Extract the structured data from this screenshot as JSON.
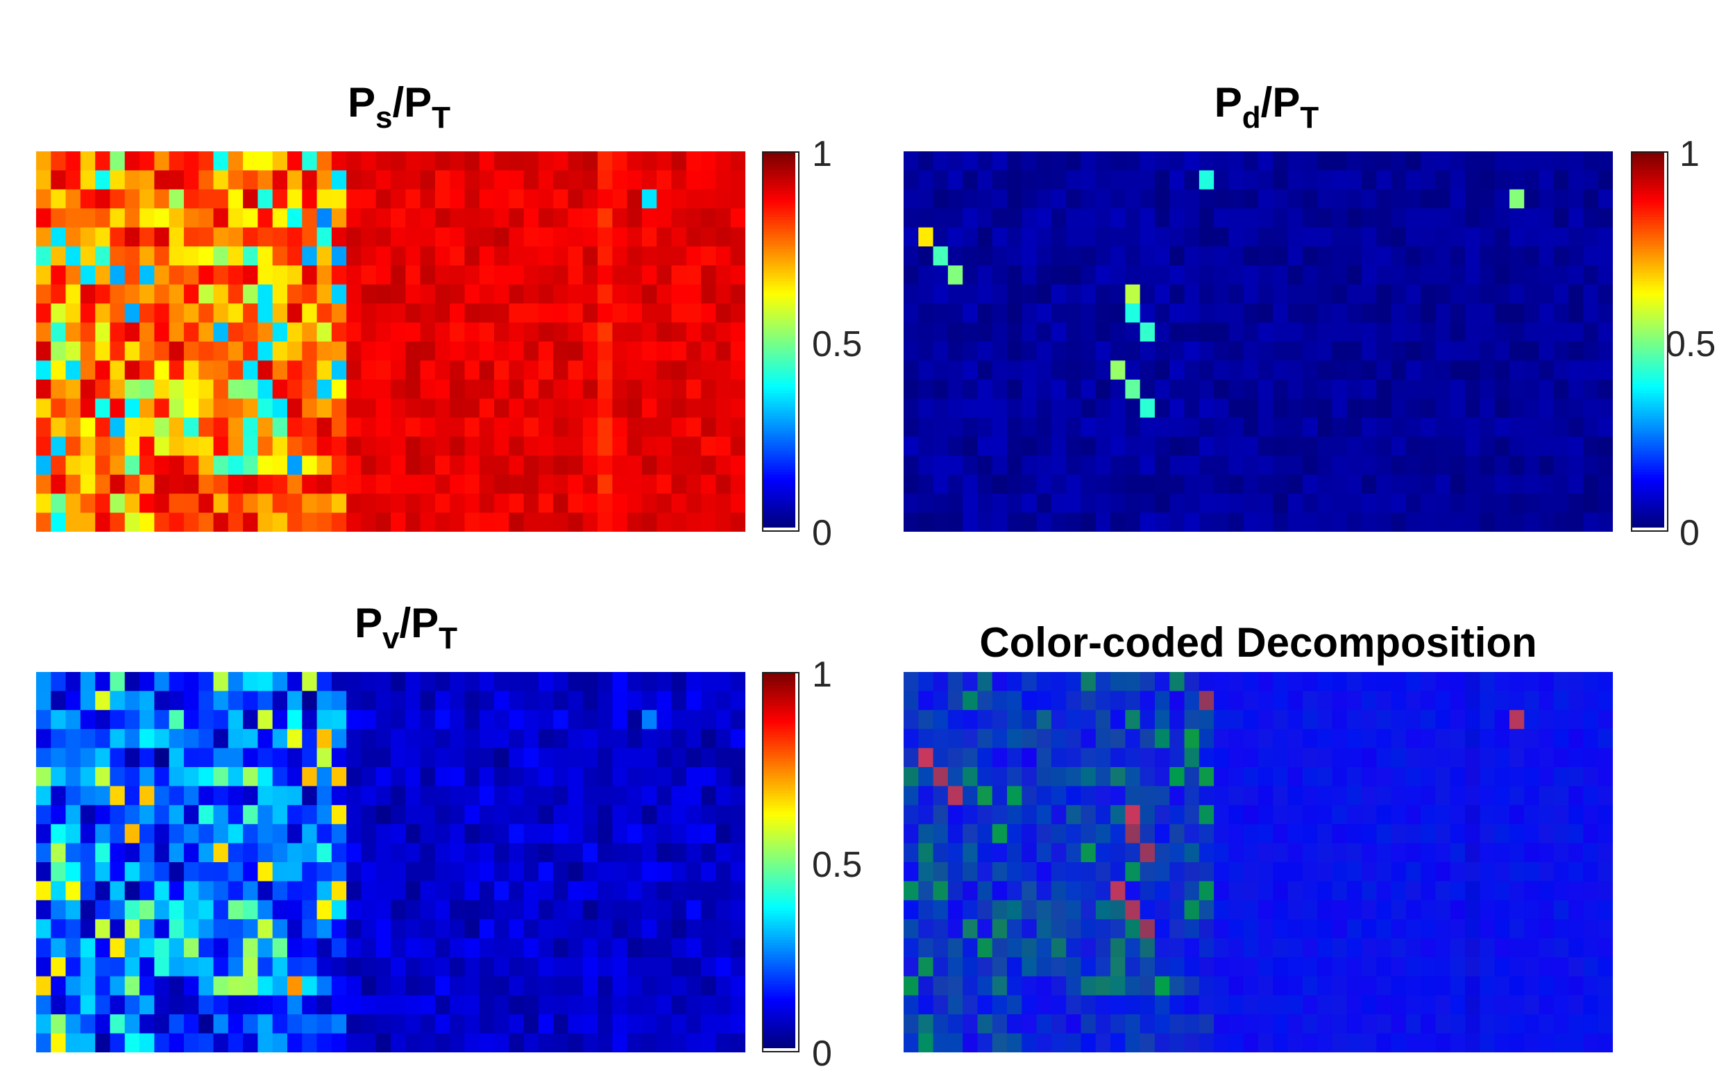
{
  "chart_data": [
    {
      "type": "heatmap",
      "title_main": "P",
      "title_sub1": "s",
      "title_mid": "/P",
      "title_sub2": "T",
      "title": "Ps/PT",
      "colormap": "jet",
      "clim": [
        0,
        1
      ],
      "colorbar_ticks": [
        "1",
        "0.5",
        "0"
      ],
      "grid": {
        "rows": 20,
        "cols": 48
      },
      "region_means": {
        "left_third": 0.82,
        "right": 0.9
      },
      "annotations": "high surface-scattering ratio across scene; lower values (0.2–0.6) at scattered pixels in left block"
    },
    {
      "type": "heatmap",
      "title_main": "P",
      "title_sub1": "d",
      "title_mid": "/P",
      "title_sub2": "T",
      "title": "Pd/PT",
      "colormap": "jet",
      "clim": [
        0,
        1
      ],
      "colorbar_ticks": [
        "1",
        "0.5",
        "0"
      ],
      "grid": {
        "rows": 20,
        "cols": 48
      },
      "region_means": {
        "left_third": 0.05,
        "right": 0.03
      },
      "annotations": "mostly near 0; a few hot pixels reaching ~0.6"
    },
    {
      "type": "heatmap",
      "title_main": "P",
      "title_sub1": "v",
      "title_mid": "/P",
      "title_sub2": "T",
      "title": "Pv/PT",
      "colormap": "jet",
      "clim": [
        0,
        1
      ],
      "colorbar_ticks": [
        "1",
        "0.5",
        "0"
      ],
      "grid": {
        "rows": 20,
        "cols": 48
      },
      "region_means": {
        "left_third": 0.3,
        "right": 0.12
      },
      "annotations": "volume scattering ratio ~0.3–0.4 in left block, ~0.1 elsewhere"
    },
    {
      "type": "heatmap",
      "title": "Color-coded Decomposition",
      "colormap": "RGB composite (R=Pd, G=Pv, B=Ps)",
      "grid": {
        "rows": 20,
        "cols": 48
      }
    }
  ]
}
